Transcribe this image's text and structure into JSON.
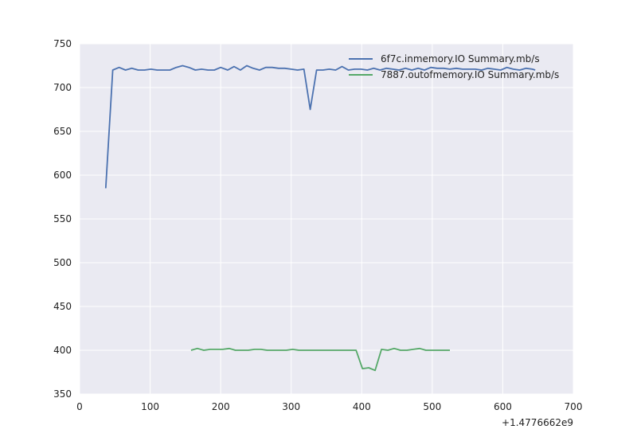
{
  "chart_data": {
    "type": "line",
    "xlim": [
      0,
      700
    ],
    "ylim": [
      350,
      750
    ],
    "x_ticks": [
      0,
      100,
      200,
      300,
      400,
      500,
      600,
      700
    ],
    "y_ticks": [
      350,
      400,
      450,
      500,
      550,
      600,
      650,
      700,
      750
    ],
    "x_offset_label": "+1.4776662e9",
    "grid": true,
    "legend_position": "top-right",
    "background": "#eaeaf2",
    "series": [
      {
        "name": "6f7c.inmemory.IO Summary.mb/s",
        "color": "#4c72b0",
        "x": [
          37,
          47,
          56,
          65,
          74,
          83,
          92,
          101,
          110,
          119,
          128,
          137,
          146,
          155,
          164,
          173,
          182,
          191,
          200,
          210,
          219,
          228,
          237,
          246,
          255,
          264,
          273,
          282,
          291,
          300,
          309,
          318,
          327,
          336,
          345,
          354,
          363,
          372,
          381,
          390,
          399,
          408,
          417,
          426,
          435,
          444,
          453,
          462,
          471,
          480,
          489,
          498,
          507,
          516,
          525,
          534,
          543,
          552,
          561,
          570,
          579,
          588,
          597,
          606,
          615,
          624,
          633,
          642,
          646
        ],
        "y": [
          585,
          720,
          723,
          720,
          722,
          720,
          720,
          721,
          720,
          720,
          720,
          723,
          725,
          723,
          720,
          721,
          720,
          720,
          723,
          720,
          724,
          720,
          725,
          722,
          720,
          723,
          723,
          722,
          722,
          721,
          720,
          721,
          675,
          720,
          720,
          721,
          720,
          724,
          720,
          721,
          721,
          720,
          722,
          720,
          722,
          721,
          720,
          722,
          720,
          722,
          720,
          723,
          722,
          722,
          721,
          722,
          721,
          721,
          721,
          720,
          722,
          721,
          720,
          723,
          721,
          720,
          722,
          721,
          720
        ],
        "values_note": ""
      },
      {
        "name": "7887.outofmemory.IO Summary.mb/s",
        "color": "#55a868",
        "x": [
          158,
          167,
          176,
          185,
          194,
          203,
          212,
          221,
          230,
          239,
          248,
          257,
          266,
          275,
          284,
          293,
          302,
          311,
          320,
          329,
          338,
          347,
          356,
          365,
          374,
          383,
          392,
          401,
          410,
          419,
          428,
          437,
          446,
          455,
          464,
          473,
          482,
          491,
          500,
          509,
          518,
          525
        ],
        "y": [
          400,
          402,
          400,
          401,
          401,
          401,
          402,
          400,
          400,
          400,
          401,
          401,
          400,
          400,
          400,
          400,
          401,
          400,
          400,
          400,
          400,
          400,
          400,
          400,
          400,
          400,
          400,
          379,
          380,
          377,
          401,
          400,
          402,
          400,
          400,
          401,
          402,
          400,
          400,
          400,
          400,
          400
        ],
        "values_note": ""
      }
    ]
  }
}
